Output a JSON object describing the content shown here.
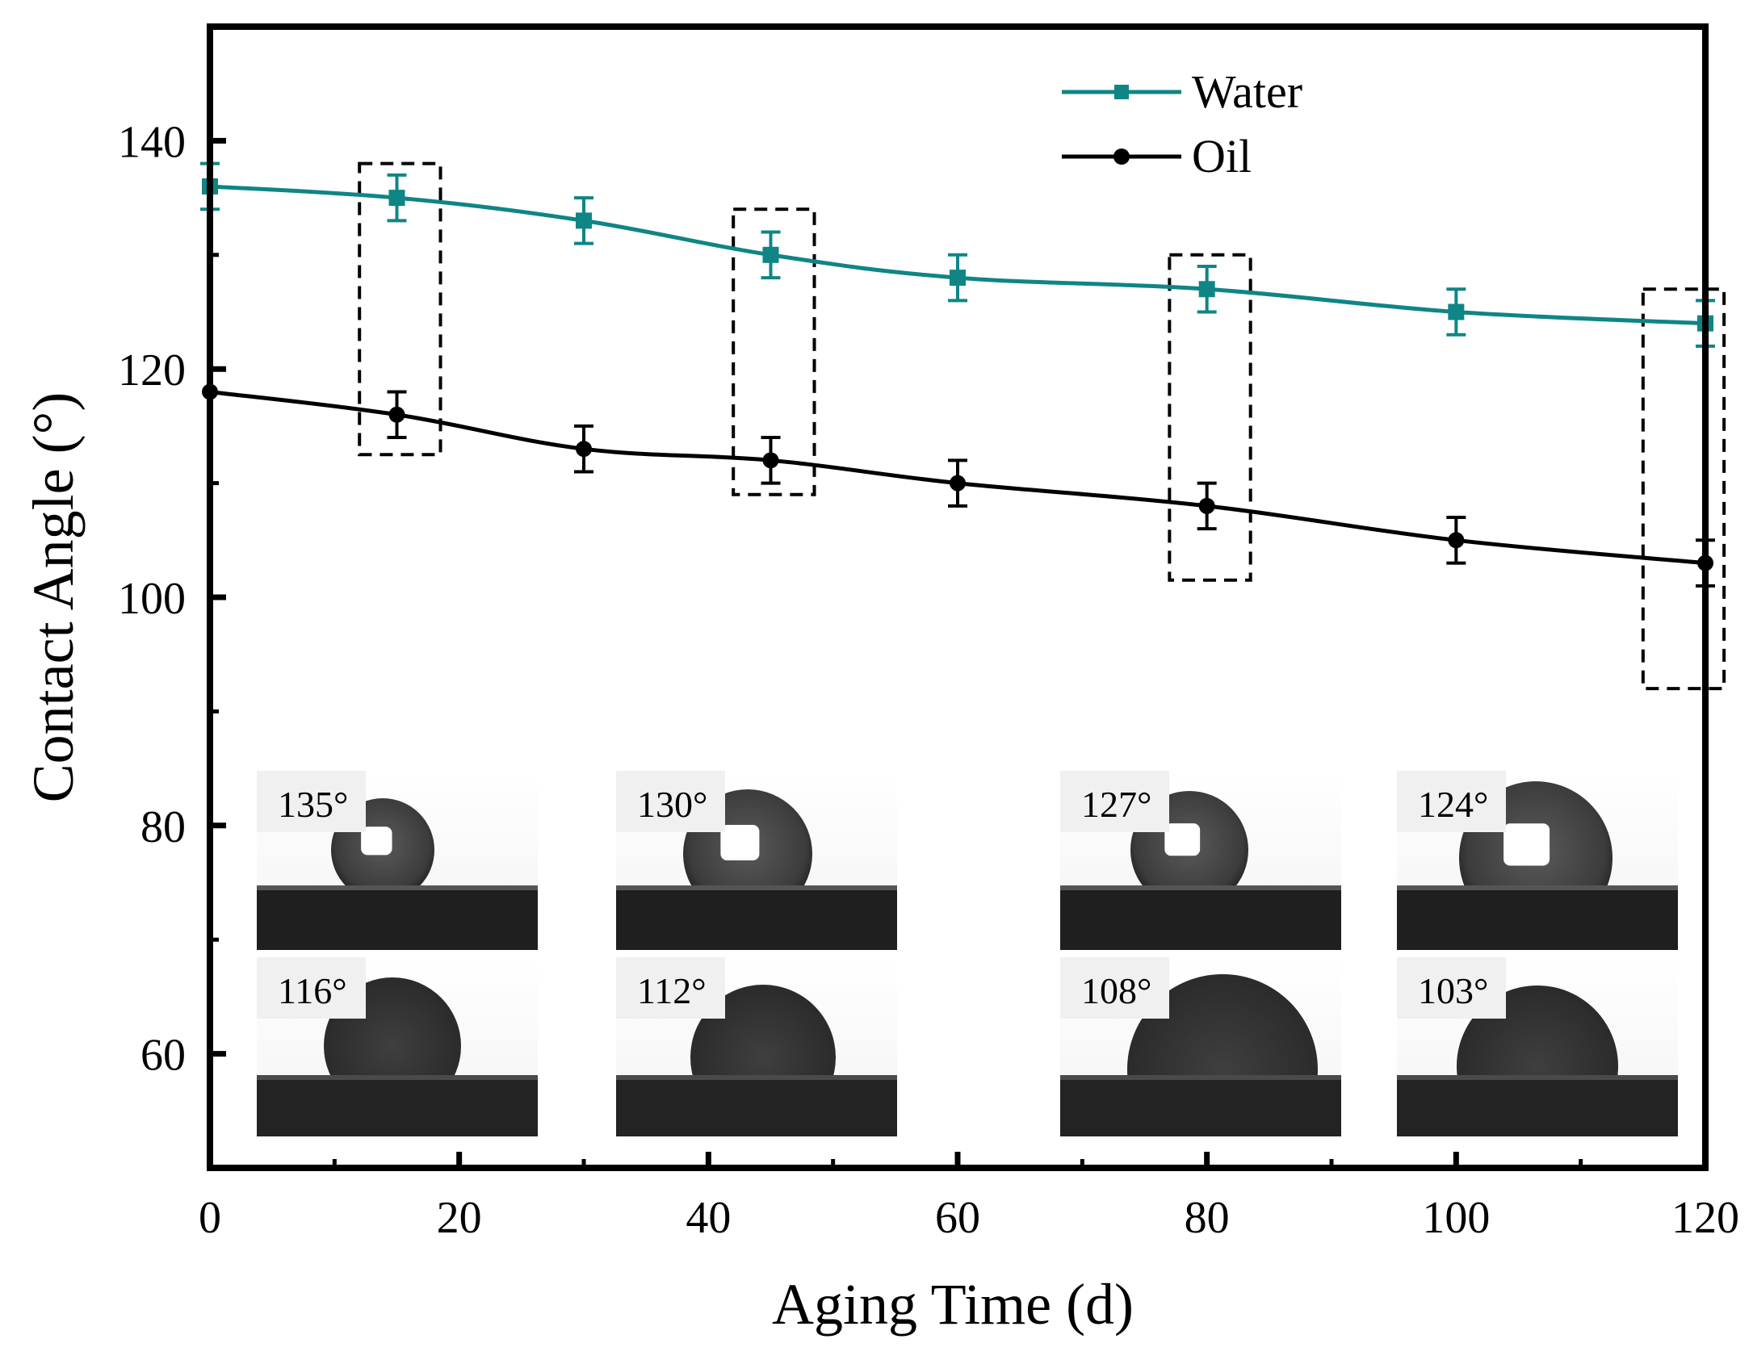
{
  "chart_data": {
    "type": "line",
    "xlabel": "Aging Time (d)",
    "ylabel": "Contact Angle (°)",
    "xlim": [
      0,
      120
    ],
    "ylim": [
      50,
      150
    ],
    "xticks": [
      0,
      20,
      40,
      60,
      80,
      100,
      120
    ],
    "yticks": [
      60,
      80,
      100,
      120,
      140
    ],
    "legend_position": "top-right",
    "x": [
      0,
      15,
      30,
      45,
      60,
      80,
      100,
      120
    ],
    "series": [
      {
        "name": "Water",
        "color": "#0f8585",
        "marker": "square",
        "values": [
          136,
          135,
          133,
          130,
          128,
          127,
          125,
          124
        ],
        "errors": [
          2,
          2,
          2,
          2,
          2,
          2,
          2,
          2
        ]
      },
      {
        "name": "Oil",
        "color": "#000000",
        "marker": "circle",
        "values": [
          118,
          116,
          113,
          112,
          110,
          108,
          105,
          103
        ],
        "errors": [
          0,
          2,
          2,
          2,
          2,
          2,
          2,
          2
        ]
      }
    ],
    "highlight_boxes": [
      {
        "x_range": [
          12,
          18.5
        ],
        "y_range": [
          112.5,
          138
        ]
      },
      {
        "x_range": [
          42,
          48.5
        ],
        "y_range": [
          109,
          134
        ]
      },
      {
        "x_range": [
          77,
          83.5
        ],
        "y_range": [
          101.5,
          130
        ]
      },
      {
        "x_range": [
          115,
          121.5
        ],
        "y_range": [
          92,
          127
        ]
      }
    ],
    "insets": [
      {
        "water_label": "135°",
        "oil_label": "116°"
      },
      {
        "water_label": "130°",
        "oil_label": "112°"
      },
      {
        "water_label": "127°",
        "oil_label": "108°"
      },
      {
        "water_label": "124°",
        "oil_label": "103°"
      }
    ]
  }
}
